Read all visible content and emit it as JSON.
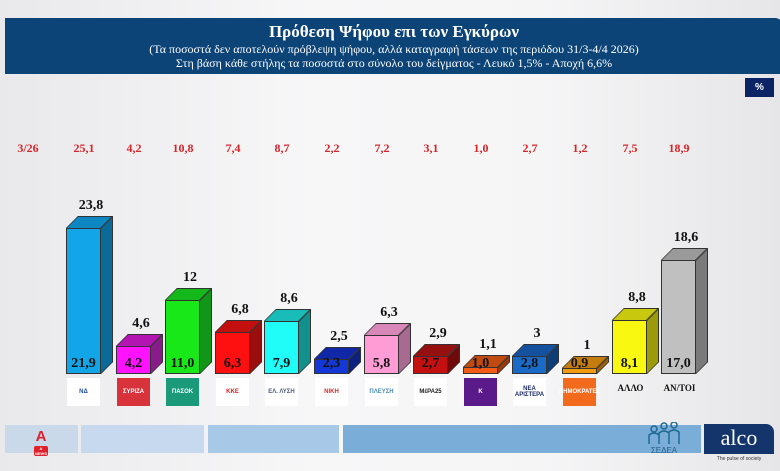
{
  "header": {
    "title": "Πρόθεση Ψήφου επι των Εγκύρων",
    "subtitle": "(Τα ποσοστά δεν αποτελούν πρόβλεψη ψήφου, αλλά καταγραφή τάσεων της περιόδου  31/3-4/4 2026)",
    "note": "Στη βάση κάθε στήλης τα ποσοστά στο σύνολο του δείγματος - Λευκό 1,5% - Αποχή 6,6%"
  },
  "percent_badge": "%",
  "previous_label": "3/26",
  "colors": {
    "header_bg": "#0d4478",
    "previous_text": "#d8252b"
  },
  "chart_data": {
    "type": "bar",
    "title": "Πρόθεση Ψήφου επι των Εγκύρων",
    "xlabel": "",
    "ylabel": "%",
    "categories": [
      "ΝΔ",
      "ΣΥΡΙΖΑ",
      "ΠΑΣΟΚ",
      "ΚΚΕ",
      "Ελληνική Λύση",
      "Νίκη",
      "Πλεύση Ελευθερίας",
      "ΜέΡΑ25",
      "Κόμμα 5",
      "Νέα Αριστερά",
      "Δημοκράτες",
      "ΑΛΛΟ",
      "ΑΝ/ΤΟΙ"
    ],
    "series": [
      {
        "name": "Επί των εγκύρων",
        "values": [
          23.8,
          4.6,
          12,
          6.8,
          8.6,
          2.5,
          6.3,
          2.9,
          1.1,
          3,
          1,
          8.8,
          18.6
        ]
      },
      {
        "name": "Επί του συνόλου του δείγματος",
        "values": [
          21.9,
          4.2,
          11.0,
          6.3,
          7.9,
          2.3,
          5.8,
          2.7,
          1.0,
          2.8,
          0.9,
          8.1,
          17.0
        ]
      },
      {
        "name": "3/26",
        "values": [
          25.1,
          4.2,
          10.8,
          7.4,
          8.7,
          2.2,
          7.2,
          3.1,
          1.0,
          2.7,
          1.2,
          7.5,
          18.9
        ]
      }
    ],
    "grid": false,
    "legend": "none"
  },
  "bars": [
    {
      "top": "23,8",
      "inner": "21,9",
      "prev": "25,1",
      "value": 23.8,
      "front": "#12a6e8",
      "side": "#0a6a98",
      "topc": "#0d87c2",
      "logo": "ΝΔ",
      "logo_bg": "#ffffff",
      "logo_fg": "#1d4d9b"
    },
    {
      "top": "4,6",
      "inner": "4,2",
      "prev": "4,2",
      "value": 4.6,
      "front": "#ff12ff",
      "side": "#8a1b8a",
      "topc": "#b315b3",
      "logo": "ΣΥΡΙΖΑ",
      "logo_bg": "#d8323a",
      "logo_fg": "#ffffff"
    },
    {
      "top": "12",
      "inner": "11,0",
      "prev": "10,8",
      "value": 12,
      "front": "#18e818",
      "side": "#12961a",
      "topc": "#14b81a",
      "logo": "ΠΑΣΟΚ",
      "logo_bg": "#1a9a78",
      "logo_fg": "#ffffff"
    },
    {
      "top": "6,8",
      "inner": "6,3",
      "prev": "7,4",
      "value": 6.8,
      "front": "#ff1010",
      "side": "#9a0e0e",
      "topc": "#c40f0f",
      "logo": "KKE",
      "logo_bg": "#ffffff",
      "logo_fg": "#d81e1e"
    },
    {
      "top": "8,6",
      "inner": "7,9",
      "prev": "8,7",
      "value": 8.6,
      "front": "#20fcf8",
      "side": "#12908c",
      "topc": "#18bcb8",
      "logo": "ΕΛ. ΛΥΣΗ",
      "logo_bg": "#ffffff",
      "logo_fg": "#4a5a78"
    },
    {
      "top": "2,5",
      "inner": "2,3",
      "prev": "2,2",
      "value": 2.5,
      "front": "#1438d8",
      "side": "#0c2080",
      "topc": "#1028a8",
      "logo": "ΝΙΚΗ",
      "logo_bg": "#ffffff",
      "logo_fg": "#d42a2a"
    },
    {
      "top": "6,3",
      "inner": "5,8",
      "prev": "7,2",
      "value": 6.3,
      "front": "#ff9cd6",
      "side": "#a86a90",
      "topc": "#d888b8",
      "logo": "ΠΛΕΥΣΗ",
      "logo_bg": "#ffffff",
      "logo_fg": "#4a8ab0"
    },
    {
      "top": "2,9",
      "inner": "2,7",
      "prev": "3,1",
      "value": 2.9,
      "front": "#c41010",
      "side": "#700a0a",
      "topc": "#961010",
      "logo": "ΜέΡΑ25",
      "logo_bg": "#ffffff",
      "logo_fg": "#222222"
    },
    {
      "top": "1,1",
      "inner": "1,0",
      "prev": "1,0",
      "value": 1.1,
      "front": "#f25c14",
      "side": "#9a3a0c",
      "topc": "#c04a10",
      "logo": "Κ",
      "logo_bg": "#5a1a8a",
      "logo_fg": "#ffffff"
    },
    {
      "top": "3",
      "inner": "2,8",
      "prev": "2,7",
      "value": 3,
      "front": "#1a6ac8",
      "side": "#0e3e78",
      "topc": "#1452a0",
      "logo": "ΝΕΑ ΑΡΙΣΤΕΡΑ",
      "logo_bg": "#ffffff",
      "logo_fg": "#1a2a6a"
    },
    {
      "top": "1",
      "inner": "0,9",
      "prev": "1,2",
      "value": 1,
      "front": "#f29a10",
      "side": "#9a600a",
      "topc": "#c47c0e",
      "logo": "ΔΗΜΟΚΡΑΤΕΣ",
      "logo_bg": "#f26a1c",
      "logo_fg": "#ffffff"
    },
    {
      "top": "8,8",
      "inner": "8,1",
      "prev": "7,5",
      "value": 8.8,
      "front": "#f8f810",
      "side": "#9a9a0a",
      "topc": "#c8c80e",
      "label": "ΑΛΛΟ"
    },
    {
      "top": "18,6",
      "inner": "17,0",
      "prev": "18,9",
      "value": 18.6,
      "front": "#c0c0c0",
      "side": "#7a7a7a",
      "topc": "#9a9a9a",
      "label": "ΑΝ/ΤΟΙ"
    }
  ],
  "footer": {
    "channel_logo": "A NEWS",
    "sedea_label": "ΣΕΔΕΑ",
    "alco_label": "alco",
    "alco_tagline": "The pulse of society"
  }
}
